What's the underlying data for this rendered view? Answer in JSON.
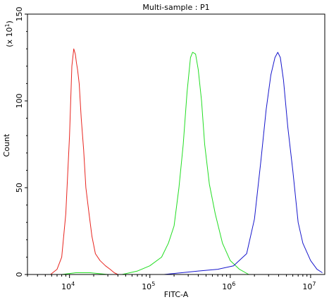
{
  "chart_data": {
    "type": "line",
    "title": "Multi-sample : P1",
    "xlabel": "FITC-A",
    "ylabel": "Count",
    "y_multiplier": "(x 10",
    "y_multiplier_exp": "1",
    "y_multiplier_close": ")",
    "x_scale": "log",
    "xlim": [
      3000,
      15000000
    ],
    "ylim": [
      0,
      150
    ],
    "x_ticks": [
      {
        "base": "10",
        "exp": "4",
        "value": 10000
      },
      {
        "base": "10",
        "exp": "5",
        "value": 100000
      },
      {
        "base": "10",
        "exp": "6",
        "value": 1000000
      },
      {
        "base": "10",
        "exp": "7",
        "value": 10000000
      }
    ],
    "y_ticks": [
      {
        "label": "0",
        "value": 0
      },
      {
        "label": "50",
        "value": 50
      },
      {
        "label": "100",
        "value": 100
      },
      {
        "label": "150",
        "value": 150
      }
    ],
    "grid": false,
    "legend": "none",
    "series": [
      {
        "color": "#e8251f",
        "x": [
          5800,
          7000,
          8000,
          9000,
          10000,
          10700,
          11300,
          11800,
          12200,
          12600,
          13200,
          14000,
          15000,
          16000,
          17500,
          19000,
          21000,
          24000,
          28000,
          32000,
          36000,
          40000
        ],
        "values": [
          0,
          3,
          10,
          35,
          80,
          120,
          130,
          127,
          122,
          118,
          110,
          90,
          72,
          50,
          35,
          22,
          12,
          8,
          5,
          3,
          1,
          0
        ]
      },
      {
        "color": "#22dd22",
        "x": [
          8000,
          12000,
          18000,
          30000,
          45000,
          70000,
          100000,
          140000,
          170000,
          200000,
          230000,
          260000,
          290000,
          320000,
          340000,
          370000,
          400000,
          440000,
          480000,
          550000,
          650000,
          800000,
          1000000,
          1300000,
          1700000
        ],
        "values": [
          0,
          1,
          1,
          0,
          0,
          2,
          5,
          10,
          18,
          28,
          50,
          75,
          105,
          125,
          128,
          127,
          118,
          100,
          75,
          52,
          35,
          18,
          8,
          3,
          0
        ]
      },
      {
        "color": "#1616cc",
        "x": [
          150000,
          250000,
          400000,
          700000,
          1100000,
          1600000,
          2000000,
          2400000,
          2800000,
          3200000,
          3600000,
          3900000,
          4200000,
          4600000,
          5200000,
          6000000,
          7000000,
          8000000,
          10000000,
          12000000,
          14000000
        ],
        "values": [
          0,
          1,
          2,
          3,
          5,
          12,
          32,
          65,
          95,
          115,
          125,
          128,
          125,
          112,
          85,
          60,
          30,
          18,
          8,
          3,
          1
        ]
      }
    ]
  }
}
